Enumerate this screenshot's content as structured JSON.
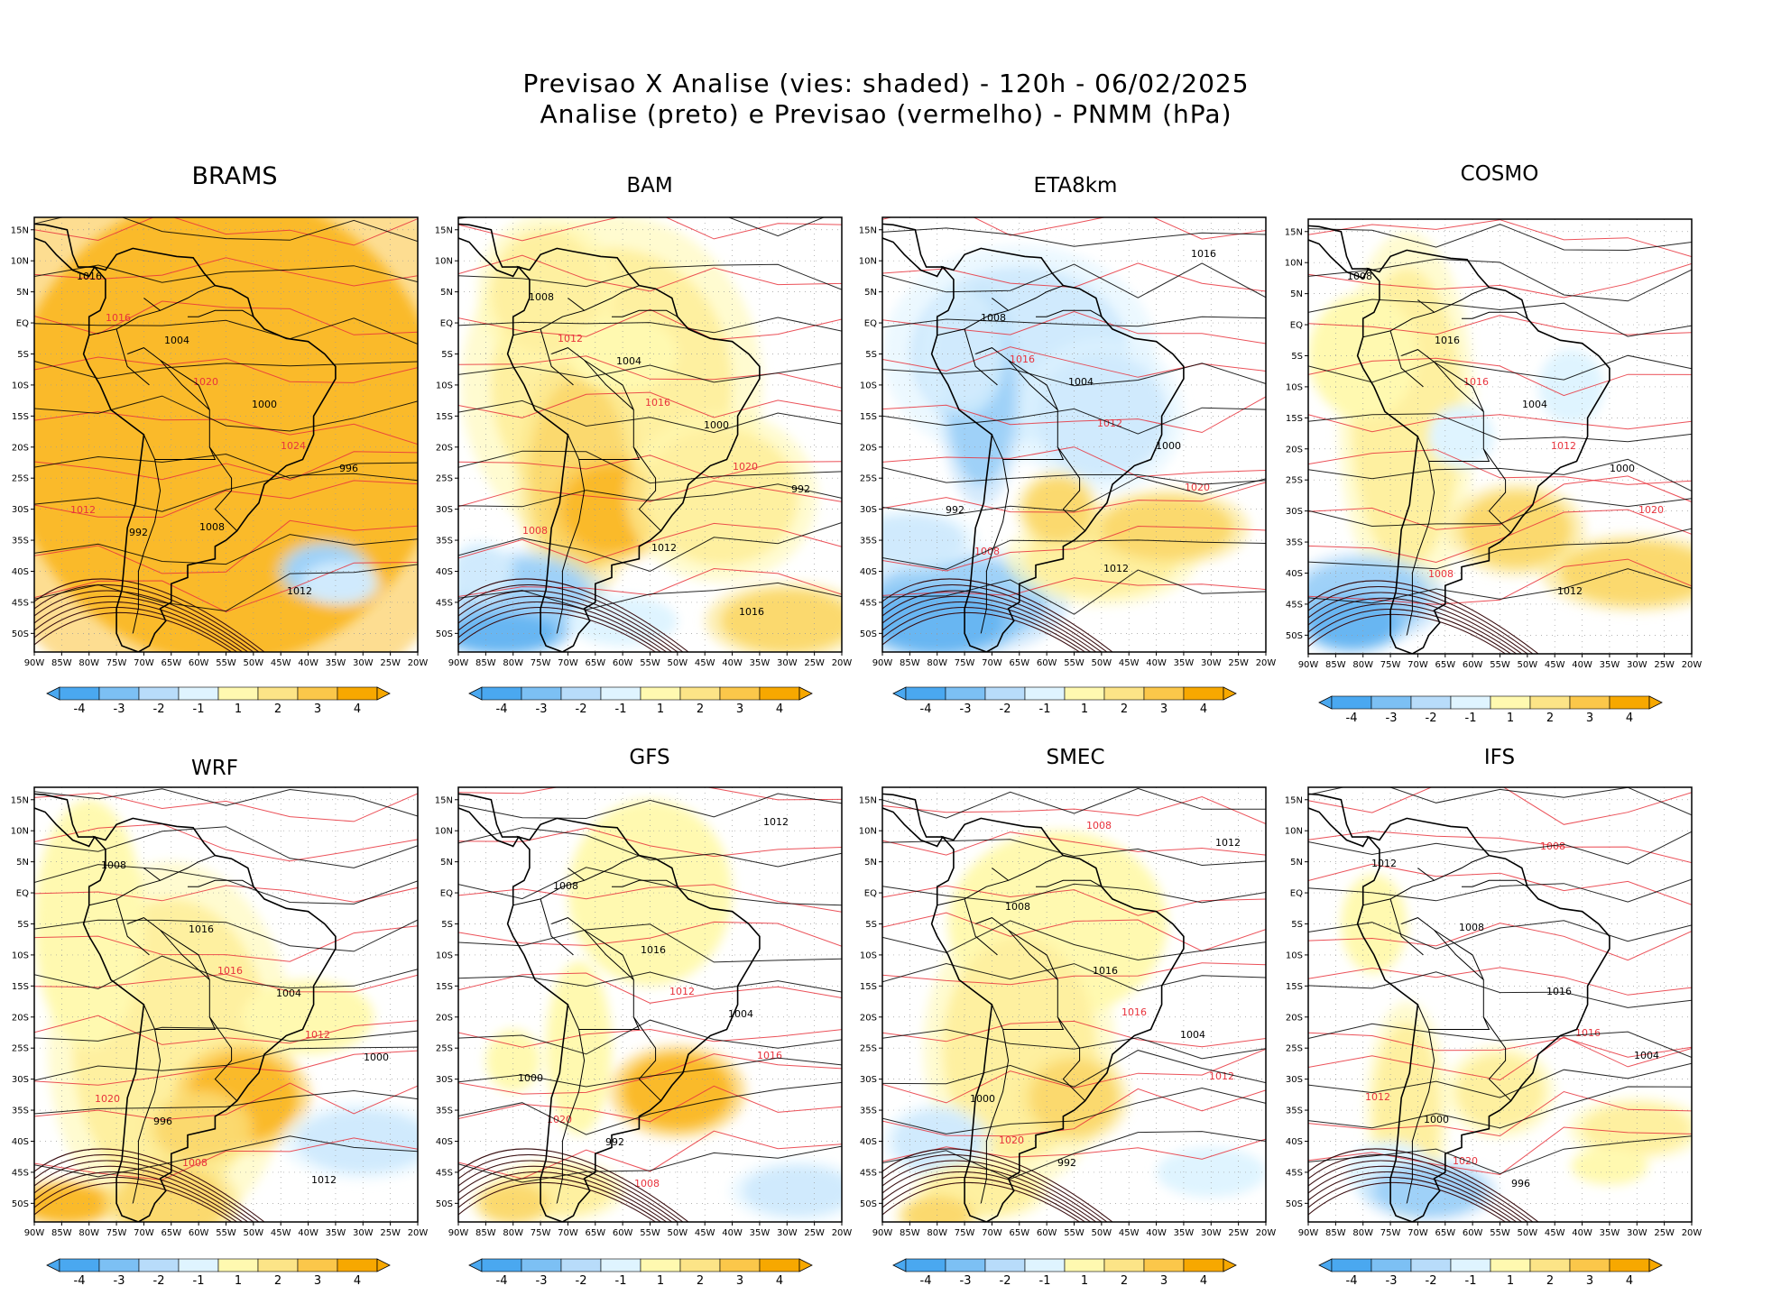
{
  "title": {
    "line1": "Previsao X Analise (vies: shaded) - 120h - 06/02/2025",
    "line2": "Analise (preto) e Previsao (vermelho) - PNMM (hPa)"
  },
  "axes": {
    "lat_labels": [
      "15N",
      "10N",
      "5N",
      "EQ",
      "5S",
      "10S",
      "15S",
      "20S",
      "25S",
      "30S",
      "35S",
      "40S",
      "45S",
      "50S"
    ],
    "lon_labels": [
      "90W",
      "85W",
      "80W",
      "75W",
      "70W",
      "65W",
      "60W",
      "55W",
      "50W",
      "45W",
      "40W",
      "35W",
      "30W",
      "25W",
      "20W"
    ]
  },
  "colorbar": {
    "ticks": [
      "-4",
      "-3",
      "-2",
      "-1",
      "1",
      "2",
      "3",
      "4"
    ],
    "colors": [
      "#4aa8f0",
      "#7cc0f4",
      "#b8dcfa",
      "#dff4ff",
      "#ffffff",
      "#fff9b0",
      "#fce487",
      "#fbc74a",
      "#f7a800"
    ]
  },
  "colors": {
    "analysis": "#000000",
    "forecast": "#e8323c",
    "shade_pos": "#f7a800",
    "shade_neg": "#4aa8f0"
  },
  "panels": [
    {
      "name": "BRAMS",
      "bias": 4,
      "contours_black": [
        "1008",
        "1012",
        "1016",
        "1004",
        "1000",
        "996",
        "992"
      ],
      "contours_red": [
        "1016",
        "1020",
        "1024",
        "1012"
      ]
    },
    {
      "name": "BAM",
      "bias": 2,
      "contours_black": [
        "1012",
        "1016",
        "1008",
        "1004",
        "1000",
        "992"
      ],
      "contours_red": [
        "1012",
        "1016",
        "1020",
        "1008"
      ]
    },
    {
      "name": "ETA8km",
      "bias": -2,
      "contours_black": [
        "1012",
        "1016",
        "1008",
        "1004",
        "1000",
        "992"
      ],
      "contours_red": [
        "1016",
        "1012",
        "1020",
        "1008"
      ]
    },
    {
      "name": "COSMO",
      "bias": 1,
      "contours_black": [
        "1012",
        "1008",
        "1016",
        "1004",
        "1000"
      ],
      "contours_red": [
        "1016",
        "1012",
        "1020",
        "1008"
      ]
    },
    {
      "name": "WRF",
      "bias": 2,
      "contours_black": [
        "1012",
        "1008",
        "1016",
        "1004",
        "1000",
        "996"
      ],
      "contours_red": [
        "1016",
        "1012",
        "1020",
        "1008"
      ]
    },
    {
      "name": "GFS",
      "bias": 1,
      "contours_black": [
        "1012",
        "1008",
        "1016",
        "1004",
        "1000",
        "992"
      ],
      "contours_red": [
        "1012",
        "1016",
        "1020",
        "1008"
      ]
    },
    {
      "name": "SMEC",
      "bias": 1,
      "contours_black": [
        "1012",
        "1008",
        "1016",
        "1004",
        "1000",
        "992"
      ],
      "contours_red": [
        "1016",
        "1012",
        "1020",
        "1008"
      ]
    },
    {
      "name": "IFS",
      "bias": 0,
      "contours_black": [
        "1012",
        "1008",
        "1016",
        "1004",
        "1000",
        "996"
      ],
      "contours_red": [
        "1016",
        "1012",
        "1020",
        "1008"
      ]
    }
  ]
}
